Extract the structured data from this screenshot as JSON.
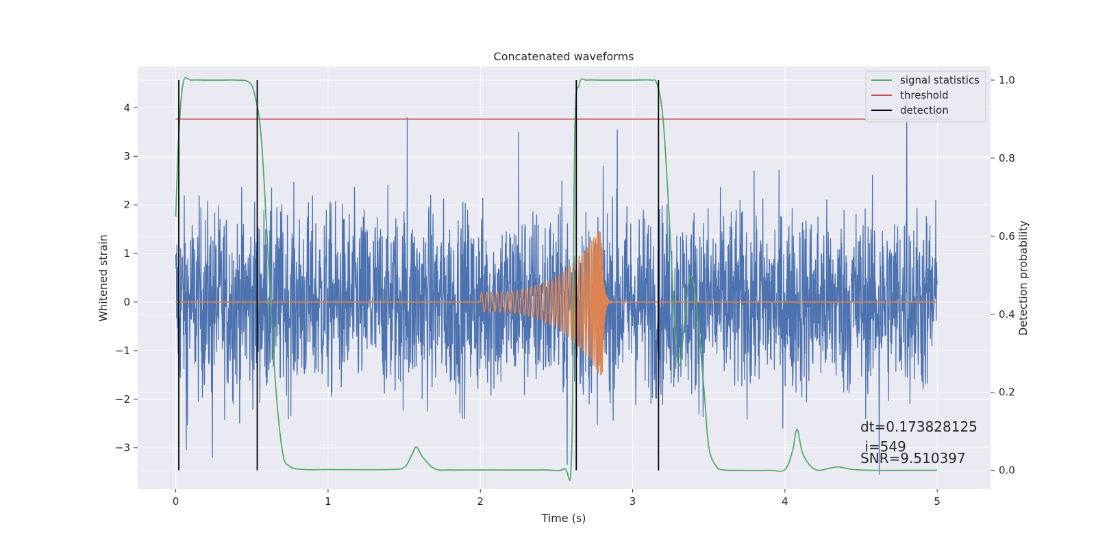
{
  "chart_data": {
    "type": "line",
    "title": "Concatenated waveforms",
    "xlabel": "Time (s)",
    "ylabel": "Whitened strain",
    "y2label": "Detection probability",
    "xlim": [
      -0.25,
      5.35
    ],
    "ylim": [
      -3.85,
      4.85
    ],
    "y2lim": [
      -0.048,
      1.035
    ],
    "xticks": [
      0,
      1,
      2,
      3,
      4,
      5
    ],
    "yticks": [
      -3,
      -2,
      -1,
      0,
      1,
      2,
      3,
      4
    ],
    "y2ticks": [
      0.0,
      0.2,
      0.4,
      0.6,
      0.8,
      1.0
    ],
    "grid": true,
    "legend_position": "top-right",
    "legend": [
      "signal statistics",
      "threshold",
      "detection"
    ],
    "colors": {
      "strain": "#4c72b0",
      "template": "#dd8452",
      "signal_statistics": "#55a868",
      "threshold": "#c44e52",
      "detection": "#000000",
      "background": "#eaeaf2",
      "grid": "#ffffff"
    },
    "series": [
      {
        "name": "signal statistics",
        "axis": "right",
        "x": [
          0.0,
          0.02,
          0.05,
          0.1,
          0.2,
          0.3,
          0.4,
          0.48,
          0.52,
          0.56,
          0.6,
          0.65,
          0.7,
          0.75,
          0.85,
          1.0,
          1.4,
          1.5,
          1.55,
          1.58,
          1.62,
          1.7,
          1.8,
          2.0,
          2.4,
          2.55,
          2.6,
          2.62,
          2.65,
          2.7,
          2.8,
          3.0,
          3.12,
          3.16,
          3.2,
          3.24,
          3.28,
          3.31,
          3.35,
          3.38,
          3.42,
          3.47,
          3.5,
          3.55,
          3.6,
          3.7,
          3.9,
          4.0,
          4.05,
          4.08,
          4.12,
          4.2,
          4.3,
          4.35,
          4.45,
          4.6,
          4.8,
          5.0
        ],
        "y": [
          0.65,
          0.86,
          0.995,
          1.0,
          1.0,
          1.0,
          1.0,
          0.995,
          0.96,
          0.86,
          0.6,
          0.25,
          0.05,
          0.01,
          0.002,
          0.002,
          0.002,
          0.008,
          0.04,
          0.06,
          0.035,
          0.004,
          0.001,
          0.001,
          0.001,
          0.004,
          0.05,
          0.86,
          0.99,
          1.0,
          1.0,
          1.0,
          1.0,
          0.99,
          0.9,
          0.65,
          0.35,
          0.27,
          0.42,
          0.5,
          0.42,
          0.2,
          0.06,
          0.01,
          0.001,
          0.0,
          0.0,
          0.002,
          0.05,
          0.105,
          0.04,
          0.002,
          0.006,
          0.009,
          0.002,
          0.0,
          0.0,
          0.0
        ]
      },
      {
        "name": "threshold",
        "axis": "right",
        "x": [
          0.0,
          5.1
        ],
        "y": [
          0.9,
          0.9
        ]
      },
      {
        "name": "detection",
        "axis": "right",
        "vlines_x": [
          0.02,
          0.535,
          2.63,
          3.17
        ],
        "vline_range": [
          0.0,
          1.0
        ]
      },
      {
        "name": "whitened strain",
        "axis": "left",
        "x_range": [
          0.0,
          5.0
        ],
        "typical_amplitude": 1.3,
        "peak_values": [
          {
            "x": 1.52,
            "y": 3.8
          },
          {
            "x": 2.25,
            "y": 3.5
          },
          {
            "x": 2.9,
            "y": 3.55
          },
          {
            "x": 4.8,
            "y": 4.2
          },
          {
            "x": 0.07,
            "y": -3.05
          },
          {
            "x": 0.24,
            "y": -3.2
          },
          {
            "x": 2.57,
            "y": -3.35
          },
          {
            "x": 4.62,
            "y": -3.55
          }
        ]
      },
      {
        "name": "injected waveform",
        "axis": "left",
        "x_range": [
          0.0,
          5.0
        ],
        "chirp_start": 2.0,
        "chirp_merger": 2.8,
        "chirp_start_amplitude": 0.2,
        "chirp_peak_amplitude": 1.6
      }
    ],
    "annotations": [
      {
        "text": "dt=0.173828125"
      },
      {
        "text": " i=549"
      },
      {
        "text": "SNR=9.510397"
      }
    ]
  }
}
